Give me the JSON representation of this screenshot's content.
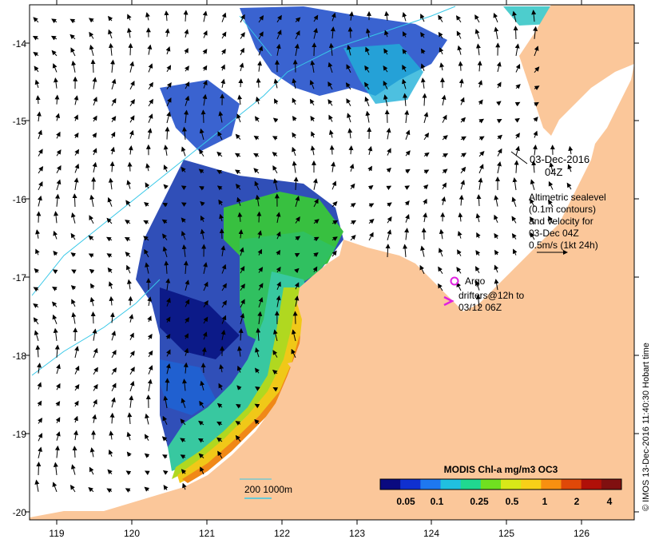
{
  "map": {
    "lon_range": [
      118.7,
      126.7
    ],
    "lat_range": [
      -20.1,
      -13.6
    ],
    "lon_ticks": [
      119,
      120,
      121,
      122,
      123,
      124,
      125,
      126
    ],
    "lat_ticks": [
      -14,
      -15,
      -16,
      -17,
      -18,
      -19,
      -20
    ],
    "land_color": "#fbc79a",
    "ocean_color": "#ffffff",
    "contour_color": "#38c8e8",
    "arrow_color": "#000000"
  },
  "annotations": {
    "date_line1": "03-Dec-2016",
    "date_line2": "04Z",
    "alt_line1": "Altimetric sealevel",
    "alt_line2": "(0.1m contours)",
    "alt_line3": "and velocity for",
    "alt_line4": "03-Dec 04Z",
    "alt_line5": "0.5m/s (1kt 24h)",
    "argo_label": "Argo",
    "drifters_line1": "drifters@12h to",
    "drifters_line2": "03/12 06Z",
    "argo_color": "#e020e0",
    "scale_label": "200  1000m",
    "side_credit": "© IMOS 13-Dec-2016 11:40:30 Hobart time"
  },
  "colorbar": {
    "title": "MODIS Chl-a mg/m3 OC3",
    "ticks": [
      "0.05",
      "0.1",
      "0.25",
      "0.5",
      "1",
      "2",
      "4"
    ],
    "colors": [
      "#0a0a80",
      "#1030d0",
      "#1e78f0",
      "#20c0e0",
      "#20d890",
      "#70e020",
      "#d8e818",
      "#f8d018",
      "#f89010",
      "#e04808",
      "#b01008",
      "#801010"
    ]
  }
}
